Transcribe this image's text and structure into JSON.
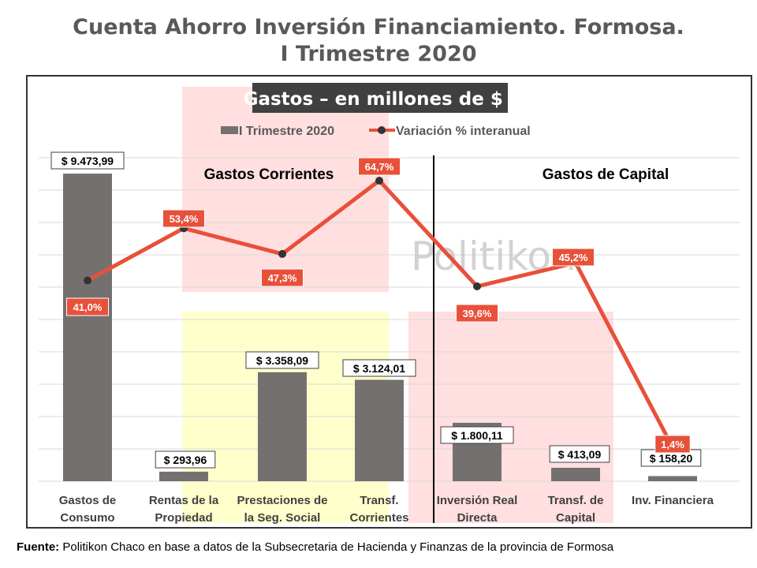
{
  "title_line1": "Cuenta Ahorro Inversión Financiamiento. Formosa.",
  "title_line2": "I Trimestre 2020",
  "source_label": "Fuente:",
  "source_text": "Politikon Chaco en base a datos de la Subsecretaria de Hacienda y Finanzas de la provincia de Formosa",
  "watermark": "Politikon",
  "colors": {
    "bar": "#757070",
    "line": "#E8503A",
    "title": "#595959",
    "panel_red": "#FFD9D9",
    "panel_yellow": "#FFFFC6"
  },
  "chart_data": {
    "type": "bar",
    "title": "Gastos – en millones de $ -",
    "legend_position": "top",
    "grid": true,
    "sections": [
      "Gastos Corrientes",
      "Gastos de Capital"
    ],
    "categories": [
      [
        "Gastos de",
        "Consumo"
      ],
      [
        "Rentas de la",
        "Propiedad"
      ],
      [
        "Prestaciones de",
        "la Seg. Social"
      ],
      [
        "Transf.",
        "Corrientes"
      ],
      [
        "Inversión Real",
        "Directa"
      ],
      [
        "Transf. de",
        "Capital"
      ],
      [
        "Inv. Financiera"
      ]
    ],
    "series": [
      {
        "name": "I Trimestre 2020",
        "type": "bar",
        "values": [
          9473.99,
          293.96,
          3358.09,
          3124.01,
          1800.11,
          413.09,
          158.2
        ],
        "labels": [
          "$ 9.473,99",
          "$ 293,96",
          "$ 3.358,09",
          "$ 3.124,01",
          "$ 1.800,11",
          "$ 413,09",
          "$ 158,20"
        ]
      },
      {
        "name": "Variación % interanual",
        "type": "line",
        "values": [
          41.0,
          53.4,
          47.3,
          64.7,
          39.6,
          45.2,
          1.4
        ],
        "labels": [
          "41,0%",
          "53,4%",
          "47,3%",
          "64,7%",
          "39,6%",
          "45,2%",
          "1,4%"
        ]
      }
    ],
    "bar_axis_max": 9500,
    "line_axis_range": [
      0,
      70
    ]
  }
}
